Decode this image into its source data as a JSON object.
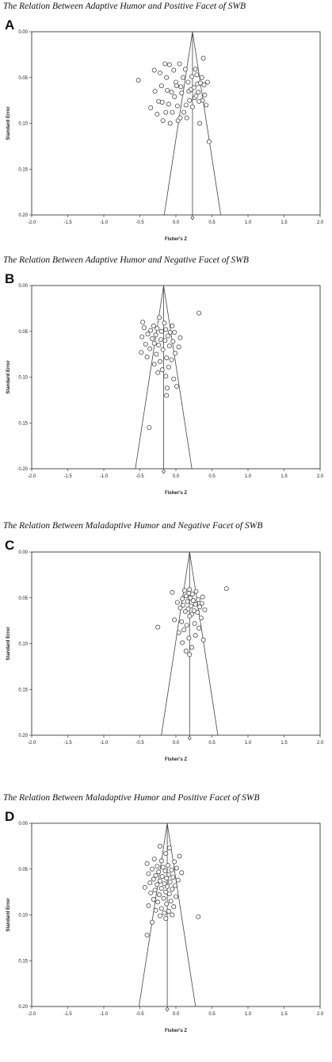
{
  "chart_data": [
    {
      "type": "scatter",
      "letter": "A",
      "title": "The Relation Between Adaptive Humor and Positive Facet of SWB",
      "xlabel": "Fisher's Z",
      "ylabel": "Standard Error",
      "xlim": [
        -2.0,
        2.0
      ],
      "ylim": [
        0.0,
        0.2
      ],
      "y_inverted": true,
      "xticks": [
        "-2.0",
        "-1.5",
        "-1.0",
        "-0.5",
        "0.0",
        "0.5",
        "1.0",
        "1.5",
        "2.0"
      ],
      "yticks": [
        "0.00",
        "0.05",
        "0.10",
        "0.15",
        "0.20"
      ],
      "grid": false,
      "center": 0.23,
      "pooled_estimate": {
        "x": 0.23,
        "se": 0.203
      },
      "points": [
        [
          -0.52,
          0.053
        ],
        [
          -0.35,
          0.083
        ],
        [
          -0.3,
          0.042
        ],
        [
          -0.29,
          0.065
        ],
        [
          -0.26,
          0.09
        ],
        [
          -0.24,
          0.076
        ],
        [
          -0.22,
          0.045
        ],
        [
          -0.2,
          0.059
        ],
        [
          -0.19,
          0.077
        ],
        [
          -0.18,
          0.097
        ],
        [
          -0.15,
          0.035
        ],
        [
          -0.14,
          0.088
        ],
        [
          -0.13,
          0.05
        ],
        [
          -0.12,
          0.064
        ],
        [
          -0.1,
          0.079
        ],
        [
          -0.09,
          0.036
        ],
        [
          -0.08,
          0.1
        ],
        [
          -0.06,
          0.066
        ],
        [
          -0.05,
          0.088
        ],
        [
          -0.03,
          0.042
        ],
        [
          -0.02,
          0.071
        ],
        [
          0.0,
          0.055
        ],
        [
          0.01,
          0.059
        ],
        [
          0.02,
          0.081
        ],
        [
          0.03,
          0.097
        ],
        [
          0.05,
          0.035
        ],
        [
          0.06,
          0.094
        ],
        [
          0.07,
          0.06
        ],
        [
          0.08,
          0.067
        ],
        [
          0.1,
          0.05
        ],
        [
          0.11,
          0.088
        ],
        [
          0.13,
          0.041
        ],
        [
          0.14,
          0.08
        ],
        [
          0.15,
          0.094
        ],
        [
          0.17,
          0.055
        ],
        [
          0.18,
          0.065
        ],
        [
          0.19,
          0.075
        ],
        [
          0.21,
          0.063
        ],
        [
          0.22,
          0.049
        ],
        [
          0.23,
          0.082
        ],
        [
          0.25,
          0.061
        ],
        [
          0.26,
          0.072
        ],
        [
          0.27,
          0.041
        ],
        [
          0.28,
          0.07
        ],
        [
          0.29,
          0.047
        ],
        [
          0.3,
          0.057
        ],
        [
          0.31,
          0.066
        ],
        [
          0.32,
          0.076
        ],
        [
          0.33,
          0.1
        ],
        [
          0.34,
          0.056
        ],
        [
          0.36,
          0.05
        ],
        [
          0.37,
          0.075
        ],
        [
          0.38,
          0.029
        ],
        [
          0.39,
          0.058
        ],
        [
          0.4,
          0.069
        ],
        [
          0.42,
          0.08
        ],
        [
          0.44,
          0.055
        ],
        [
          0.46,
          0.12
        ]
      ]
    },
    {
      "type": "scatter",
      "letter": "B",
      "title": "The Relation Between Adaptive Humor and Negative Facet of SWB",
      "xlabel": "Fisher's Z",
      "ylabel": "Standard Error",
      "xlim": [
        -2.0,
        2.0
      ],
      "ylim": [
        0.0,
        0.2
      ],
      "y_inverted": true,
      "xticks": [
        "-2.0",
        "-1.5",
        "-1.0",
        "-0.5",
        "0.0",
        "0.5",
        "1.0",
        "1.5",
        "2.0"
      ],
      "yticks": [
        "0.00",
        "0.05",
        "0.10",
        "0.15",
        "0.20"
      ],
      "grid": false,
      "center": -0.17,
      "pooled_estimate": {
        "x": -0.17,
        "se": 0.203
      },
      "points": [
        [
          0.32,
          0.03
        ],
        [
          -0.23,
          0.035
        ],
        [
          -0.46,
          0.04
        ],
        [
          -0.16,
          0.041
        ],
        [
          -0.31,
          0.044
        ],
        [
          -0.05,
          0.044
        ],
        [
          -0.44,
          0.046
        ],
        [
          -0.26,
          0.047
        ],
        [
          -0.14,
          0.048
        ],
        [
          -0.35,
          0.049
        ],
        [
          -0.2,
          0.05
        ],
        [
          -0.08,
          0.051
        ],
        [
          -0.02,
          0.051
        ],
        [
          -0.39,
          0.053
        ],
        [
          -0.28,
          0.054
        ],
        [
          -0.11,
          0.055
        ],
        [
          -0.47,
          0.056
        ],
        [
          0.06,
          0.057
        ],
        [
          -0.33,
          0.058
        ],
        [
          -0.21,
          0.059
        ],
        [
          -0.15,
          0.06
        ],
        [
          -0.04,
          0.061
        ],
        [
          -0.3,
          0.063
        ],
        [
          -0.42,
          0.064
        ],
        [
          -0.24,
          0.065
        ],
        [
          -0.09,
          0.066
        ],
        [
          0.04,
          0.067
        ],
        [
          -0.36,
          0.069
        ],
        [
          -0.18,
          0.07
        ],
        [
          -0.48,
          0.073
        ],
        [
          -0.01,
          0.074
        ],
        [
          -0.27,
          0.075
        ],
        [
          -0.4,
          0.078
        ],
        [
          -0.13,
          0.079
        ],
        [
          -0.06,
          0.081
        ],
        [
          -0.22,
          0.083
        ],
        [
          -0.3,
          0.086
        ],
        [
          -0.1,
          0.089
        ],
        [
          -0.19,
          0.092
        ],
        [
          -0.25,
          0.095
        ],
        [
          -0.14,
          0.099
        ],
        [
          -0.03,
          0.102
        ],
        [
          0.01,
          0.11
        ],
        [
          -0.12,
          0.112
        ],
        [
          -0.13,
          0.12
        ],
        [
          -0.37,
          0.155
        ]
      ]
    },
    {
      "type": "scatter",
      "letter": "C",
      "title": "The Relation Between Maladaptive Humor and Negative Facet of SWB",
      "xlabel": "Fisher's Z",
      "ylabel": "Standard Error",
      "xlim": [
        -2.0,
        2.0
      ],
      "ylim": [
        0.0,
        0.2
      ],
      "y_inverted": true,
      "xticks": [
        "-2.0",
        "-1.5",
        "-1.0",
        "-0.5",
        "0.0",
        "0.5",
        "1.0",
        "1.5",
        "2.0"
      ],
      "yticks": [
        "0.00",
        "0.05",
        "0.10",
        "0.15",
        "0.20"
      ],
      "grid": false,
      "center": 0.19,
      "pooled_estimate": {
        "x": 0.19,
        "se": 0.203
      },
      "points": [
        [
          0.7,
          0.04
        ],
        [
          0.19,
          0.041
        ],
        [
          0.12,
          0.042
        ],
        [
          0.28,
          0.043
        ],
        [
          -0.05,
          0.044
        ],
        [
          0.18,
          0.045
        ],
        [
          0.23,
          0.046
        ],
        [
          0.14,
          0.048
        ],
        [
          0.37,
          0.049
        ],
        [
          0.2,
          0.05
        ],
        [
          0.09,
          0.051
        ],
        [
          0.31,
          0.052
        ],
        [
          0.24,
          0.053
        ],
        [
          0.16,
          0.054
        ],
        [
          0.02,
          0.055
        ],
        [
          0.36,
          0.056
        ],
        [
          0.27,
          0.057
        ],
        [
          0.1,
          0.058
        ],
        [
          0.21,
          0.059
        ],
        [
          0.33,
          0.06
        ],
        [
          0.06,
          0.061
        ],
        [
          0.17,
          0.062
        ],
        [
          0.4,
          0.063
        ],
        [
          0.25,
          0.064
        ],
        [
          0.13,
          0.065
        ],
        [
          0.3,
          0.066
        ],
        [
          0.22,
          0.068
        ],
        [
          0.19,
          0.07
        ],
        [
          0.35,
          0.072
        ],
        [
          -0.02,
          0.074
        ],
        [
          0.08,
          0.076
        ],
        [
          0.26,
          0.078
        ],
        [
          0.15,
          0.08
        ],
        [
          -0.25,
          0.082
        ],
        [
          0.32,
          0.083
        ],
        [
          0.11,
          0.085
        ],
        [
          0.04,
          0.088
        ],
        [
          0.27,
          0.091
        ],
        [
          0.18,
          0.094
        ],
        [
          0.38,
          0.096
        ],
        [
          0.09,
          0.099
        ],
        [
          0.22,
          0.104
        ],
        [
          0.14,
          0.108
        ],
        [
          0.19,
          0.112
        ]
      ]
    },
    {
      "type": "scatter",
      "letter": "D",
      "title": "The Relation Between Maladaptive Humor and Positive Facet of SWB",
      "xlabel": "Fisher's Z",
      "ylabel": "Standard Error",
      "xlim": [
        -2.0,
        2.0
      ],
      "ylim": [
        0.0,
        0.2
      ],
      "y_inverted": true,
      "xticks": [
        "-2.0",
        "-1.5",
        "-1.0",
        "-0.5",
        "0.0",
        "0.5",
        "1.0",
        "1.5",
        "2.0"
      ],
      "yticks": [
        "0.00",
        "0.05",
        "0.10",
        "0.15",
        "0.20"
      ],
      "grid": false,
      "center": -0.12,
      "pooled_estimate": {
        "x": -0.12,
        "se": 0.203
      },
      "points": [
        [
          -0.22,
          0.025
        ],
        [
          -0.09,
          0.027
        ],
        [
          -0.14,
          0.033
        ],
        [
          0.05,
          0.036
        ],
        [
          -0.3,
          0.039
        ],
        [
          -0.2,
          0.041
        ],
        [
          -0.02,
          0.042
        ],
        [
          -0.4,
          0.044
        ],
        [
          -0.11,
          0.046
        ],
        [
          -0.26,
          0.047
        ],
        [
          -0.18,
          0.048
        ],
        [
          0.01,
          0.049
        ],
        [
          -0.33,
          0.05
        ],
        [
          -0.06,
          0.051
        ],
        [
          -0.15,
          0.052
        ],
        [
          -0.24,
          0.053
        ],
        [
          0.08,
          0.054
        ],
        [
          -0.38,
          0.055
        ],
        [
          -0.1,
          0.056
        ],
        [
          -0.28,
          0.057
        ],
        [
          -0.19,
          0.058
        ],
        [
          -0.04,
          0.059
        ],
        [
          -0.13,
          0.06
        ],
        [
          -0.31,
          0.061
        ],
        [
          0.03,
          0.062
        ],
        [
          -0.22,
          0.063
        ],
        [
          -0.08,
          0.064
        ],
        [
          -0.36,
          0.065
        ],
        [
          -0.16,
          0.066
        ],
        [
          -0.26,
          0.067
        ],
        [
          -0.01,
          0.068
        ],
        [
          -0.12,
          0.069
        ],
        [
          -0.43,
          0.07
        ],
        [
          -0.2,
          0.071
        ],
        [
          -0.05,
          0.072
        ],
        [
          -0.29,
          0.073
        ],
        [
          -0.14,
          0.075
        ],
        [
          -0.35,
          0.076
        ],
        [
          -0.09,
          0.077
        ],
        [
          -0.23,
          0.078
        ],
        [
          0.0,
          0.08
        ],
        [
          -0.17,
          0.082
        ],
        [
          -0.31,
          0.083
        ],
        [
          -0.07,
          0.085
        ],
        [
          -0.25,
          0.086
        ],
        [
          -0.13,
          0.088
        ],
        [
          -0.38,
          0.09
        ],
        [
          -0.03,
          0.091
        ],
        [
          -0.2,
          0.093
        ],
        [
          -0.28,
          0.095
        ],
        [
          -0.1,
          0.096
        ],
        [
          -0.16,
          0.098
        ],
        [
          -0.05,
          0.1
        ],
        [
          -0.22,
          0.101
        ],
        [
          0.31,
          0.102
        ],
        [
          -0.14,
          0.104
        ],
        [
          -0.33,
          0.108
        ],
        [
          -0.4,
          0.122
        ]
      ]
    }
  ]
}
